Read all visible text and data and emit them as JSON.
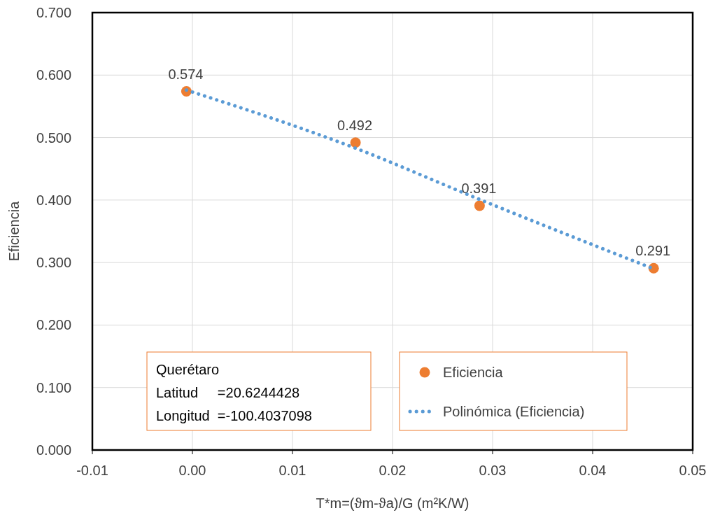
{
  "chart_data": {
    "type": "scatter",
    "xlabel": "T*m=(ϑm-ϑa)/G (m²K/W)",
    "ylabel": "Eficiencia",
    "xlim": [
      -0.01,
      0.05
    ],
    "xticks": [
      -0.01,
      {
        "value": 0,
        "label": "0.00"
      },
      0.01,
      0.02,
      0.03,
      0.04,
      0.05
    ],
    "ylim": [
      0,
      0.7
    ],
    "yticks": [
      {
        "value": 0,
        "label": "0.000"
      },
      {
        "value": 0.1,
        "label": "0.100"
      },
      {
        "value": 0.2,
        "label": "0.200"
      },
      {
        "value": 0.3,
        "label": "0.300"
      },
      {
        "value": 0.4,
        "label": "0.400"
      },
      {
        "value": 0.5,
        "label": "0.500"
      },
      {
        "value": 0.6,
        "label": "0.600"
      },
      {
        "value": 0.7,
        "label": "0.700"
      }
    ],
    "grid": true,
    "legend": "bottom right",
    "marker": "circle",
    "annotations": [
      "Querétaro",
      "Latitud     =20.6244428",
      "Longitud  =-100.4037098"
    ],
    "series": [
      {
        "name": "Eficiencia",
        "color": "#ed7d31",
        "x": [
          -0.0006,
          0.0163,
          0.0287,
          0.0461
        ],
        "values": [
          0.574,
          0.492,
          0.391,
          0.291
        ],
        "value_labels": [
          "0.574",
          "0.492",
          "0.391",
          "0.291"
        ]
      },
      {
        "name": "Polinómica (Eficiencia)",
        "type": "line",
        "color": "#5b9bd5",
        "line_style": "dotted",
        "marker": "none",
        "x": [
          -0.0006,
          0.0163,
          0.0287,
          0.0461
        ],
        "values": [
          0.576,
          0.483,
          0.401,
          0.29
        ]
      }
    ]
  }
}
